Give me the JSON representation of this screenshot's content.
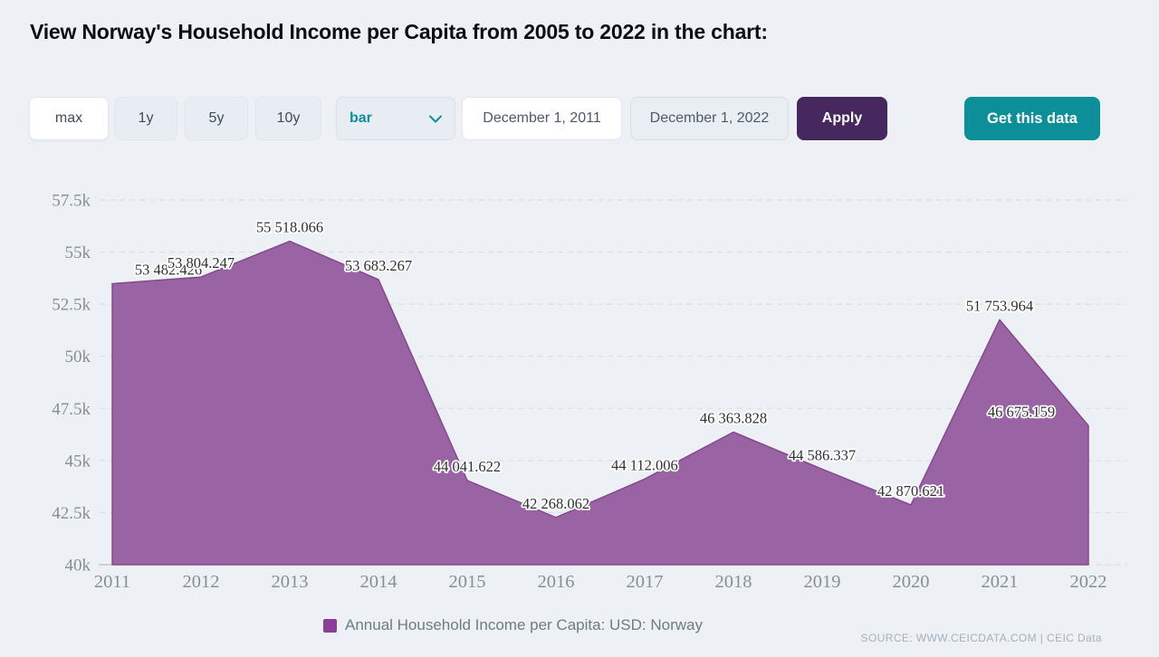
{
  "page": {
    "title": "View Norway's Household Income per Capita from 2005 to 2022 in the chart:",
    "background_color": "#edf1f6"
  },
  "toolbar": {
    "range_buttons": [
      {
        "label": "max",
        "active": true
      },
      {
        "label": "1y",
        "active": false
      },
      {
        "label": "5y",
        "active": false
      },
      {
        "label": "10y",
        "active": false
      }
    ],
    "chart_type_select": {
      "value": "bar",
      "icon": "chevron-down",
      "accent_color": "#0e909a"
    },
    "date_from": "December 1, 2011",
    "date_to": "December 1, 2022",
    "apply_label": "Apply",
    "apply_color": "#46285e",
    "get_data_label": "Get this data",
    "get_data_color": "#0d8f9a"
  },
  "chart_data": {
    "type": "area",
    "x": [
      2011,
      2012,
      2013,
      2014,
      2015,
      2016,
      2017,
      2018,
      2019,
      2020,
      2021,
      2022
    ],
    "series": [
      {
        "name": "Annual Household Income per Capita: USD: Norway",
        "values": [
          53482.426,
          53804.247,
          55518.066,
          53683.267,
          44041.622,
          42268.062,
          44112.006,
          46363.828,
          44586.337,
          42870.621,
          51753.964,
          46675.159
        ],
        "labels": [
          "53 482.426",
          "53 804.247",
          "55 518.066",
          "53 683.267",
          "44 041.622",
          "42 268.062",
          "44 112.006",
          "46 363.828",
          "44 586.337",
          "42 870.621",
          "51 753.964",
          "46 675.159"
        ]
      }
    ],
    "ylim": [
      40000,
      57500
    ],
    "yticks": [
      {
        "label": "57.5k",
        "value": 57500
      },
      {
        "label": "55k",
        "value": 55000
      },
      {
        "label": "52.5k",
        "value": 52500
      },
      {
        "label": "50k",
        "value": 50000
      },
      {
        "label": "47.5k",
        "value": 47500
      },
      {
        "label": "45k",
        "value": 45000
      },
      {
        "label": "42.5k",
        "value": 42500
      },
      {
        "label": "40k",
        "value": 40000
      }
    ],
    "grid": "horizontal-dashed",
    "legend_position": "bottom-center",
    "colors": {
      "area_fill": "#9a63a4",
      "area_stroke": "#824a8d",
      "label_text": "#303030",
      "axis_text": "#858f99",
      "gridline": "#d7dce2"
    }
  },
  "legend": {
    "label": "Annual Household Income per Capita: USD: Norway",
    "swatch_color": "#8a3e97"
  },
  "footer": {
    "source": "SOURCE: WWW.CEICDATA.COM | CEIC Data"
  }
}
